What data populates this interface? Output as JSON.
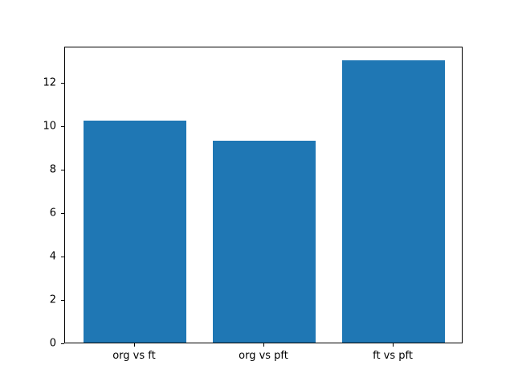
{
  "chart_data": {
    "type": "bar",
    "categories": [
      "org vs ft",
      "org vs pft",
      "ft vs pft"
    ],
    "values": [
      10.2,
      9.3,
      13.0
    ],
    "title": "",
    "xlabel": "",
    "ylabel": "",
    "ylim": [
      0,
      13.65
    ],
    "yticks": [
      0,
      2,
      4,
      6,
      8,
      10,
      12
    ],
    "bar_color": "#1f77b4",
    "background_color": "#ffffff",
    "grid": false,
    "legend": false,
    "bar_width_ratio": 0.8
  }
}
